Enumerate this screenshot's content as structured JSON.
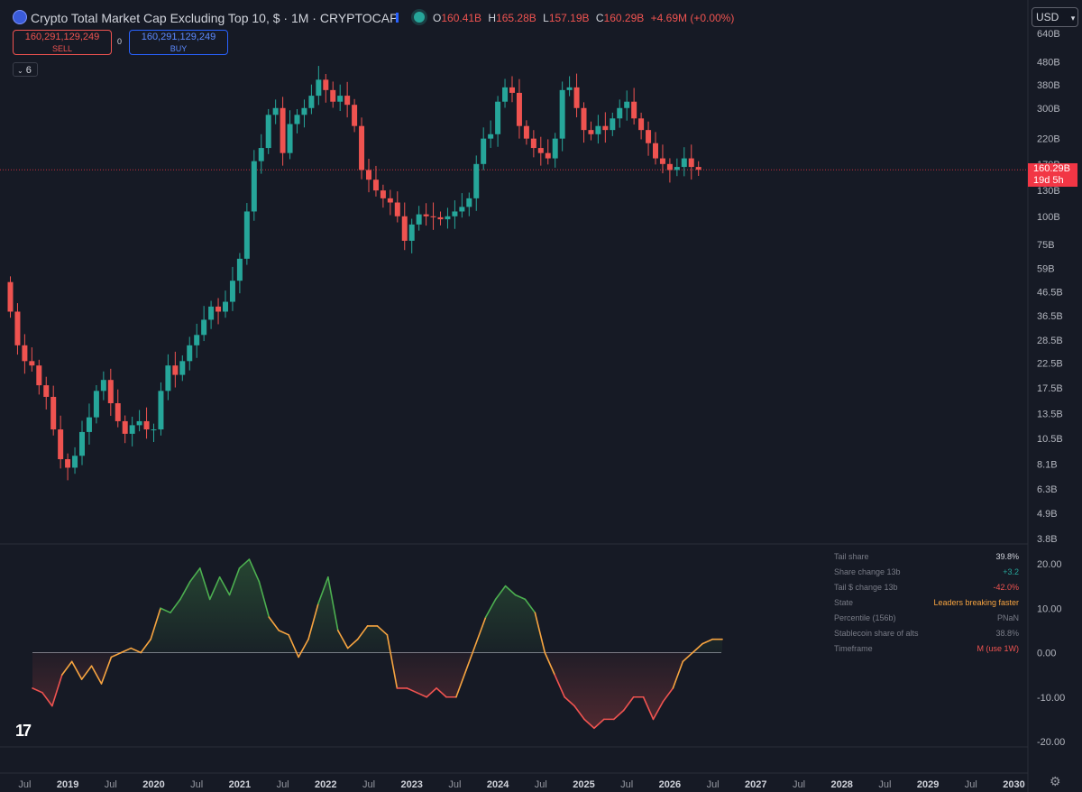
{
  "header": {
    "title": "Crypto Total Market Cap Excluding Top 10, $ · 1M · CRYPTOCAP",
    "ohlc": [
      {
        "key": "O",
        "value": "160.41B"
      },
      {
        "key": "H",
        "value": "165.28B"
      },
      {
        "key": "L",
        "value": "157.19B"
      },
      {
        "key": "C",
        "value": "160.29B"
      }
    ],
    "change": "+4.69M (+0.00%)"
  },
  "trade": {
    "sell_value": "160,291,129,249",
    "sell_label": "SELL",
    "buy_value": "160,291,129,249",
    "buy_label": "BUY",
    "spread": "0"
  },
  "indicator_count": "6",
  "currency": "USD",
  "price_tag": {
    "price": "160.29B",
    "countdown": "19d 5h"
  },
  "stats_table": [
    {
      "label": "Tail share",
      "value": "39.8%",
      "color": "#d1d4dc"
    },
    {
      "label": "Share change 13b",
      "value": "+3.2",
      "color": "#26a69a"
    },
    {
      "label": "Tail $ change 13b",
      "value": "-42.0%",
      "color": "#ef5350"
    },
    {
      "label": "State",
      "value": "Leaders breaking faster",
      "color": "#f7a440"
    },
    {
      "label": "Percentile (156b)",
      "value": "PNaN",
      "color": "#787b86"
    },
    {
      "label": "Stablecoin share of alts",
      "value": "38.8%",
      "color": "#787b86"
    },
    {
      "label": "Timeframe",
      "value": "M (use 1W)",
      "color": "#ef5350"
    }
  ],
  "colors": {
    "up": "#26a69a",
    "down": "#ef5350",
    "osc_up": "#4caf50",
    "osc_mid": "#f7a440",
    "osc_down": "#ef5350"
  },
  "chart_data": [
    {
      "type": "candlestick",
      "title": "Crypto Total Market Cap Excluding Top 10, $ · 1M · CRYPTOCAP",
      "scale": "log",
      "y_tick_labels": [
        "640B",
        "480B",
        "380B",
        "300B",
        "220B",
        "170B",
        "130B",
        "100B",
        "75B",
        "59B",
        "46.5B",
        "36.5B",
        "28.5B",
        "22.5B",
        "17.5B",
        "13.5B",
        "10.5B",
        "8.1B",
        "6.3B",
        "4.9B",
        "3.8B"
      ],
      "y_ticks": [
        640,
        480,
        380,
        300,
        220,
        170,
        130,
        100,
        75,
        59,
        46.5,
        36.5,
        28.5,
        22.5,
        17.5,
        13.5,
        10.5,
        8.1,
        6.3,
        4.9,
        3.8
      ],
      "x_tick_labels": [
        "Jul",
        "2019",
        "Jul",
        "2020",
        "Jul",
        "2021",
        "Jul",
        "2022",
        "Jul",
        "2023",
        "Jul",
        "2024",
        "Jul",
        "2025",
        "Jul",
        "2026",
        "Jul",
        "2027",
        "Jul",
        "2028",
        "Jul",
        "2029",
        "Jul",
        "2030"
      ],
      "start_month": "2018-05",
      "closes": [
        38,
        27,
        23,
        22,
        18,
        16,
        11.5,
        8.5,
        7.8,
        8.8,
        11.2,
        13,
        17,
        19,
        15,
        12.5,
        11,
        12,
        12.5,
        11.5,
        11.5,
        17,
        22,
        20,
        23,
        27,
        30,
        35,
        40,
        38,
        42,
        52,
        65,
        105,
        175,
        200,
        280,
        300,
        190,
        255,
        280,
        300,
        340,
        400,
        360,
        320,
        340,
        310,
        250,
        160,
        145,
        130,
        120,
        115,
        100,
        78,
        92,
        102,
        100,
        99,
        97,
        100,
        105,
        110,
        120,
        170,
        220,
        230,
        320,
        370,
        350,
        250,
        220,
        200,
        190,
        180,
        220,
        360,
        370,
        300,
        240,
        230,
        250,
        240,
        270,
        300,
        320,
        270,
        240,
        210,
        180,
        170,
        160,
        165,
        180,
        165,
        160.29
      ],
      "current_price": 160.29
    },
    {
      "type": "area",
      "name": "Tail share oscillator",
      "y_tick_labels": [
        "20.00",
        "10.00",
        "0.00",
        "-10.00",
        "-20.00"
      ],
      "ylim": [
        -21,
        21
      ],
      "values": [
        -8,
        -9,
        -12,
        -5,
        -2,
        -6,
        -3,
        -7,
        -1,
        0,
        1,
        0,
        3,
        10,
        9,
        12,
        16,
        19,
        12,
        17,
        13,
        19,
        21,
        16,
        8,
        5,
        4,
        -1,
        3,
        11,
        17,
        5,
        1,
        3,
        6,
        6,
        4,
        -8,
        -8,
        -9,
        -10,
        -8,
        -10,
        -10,
        -4,
        2,
        8,
        12,
        15,
        13,
        12,
        9,
        0,
        -5,
        -10,
        -12,
        -15,
        -17,
        -15,
        -15,
        -13,
        -10,
        -10,
        -15,
        -11,
        -8,
        -2,
        0,
        2,
        3,
        3
      ]
    }
  ]
}
